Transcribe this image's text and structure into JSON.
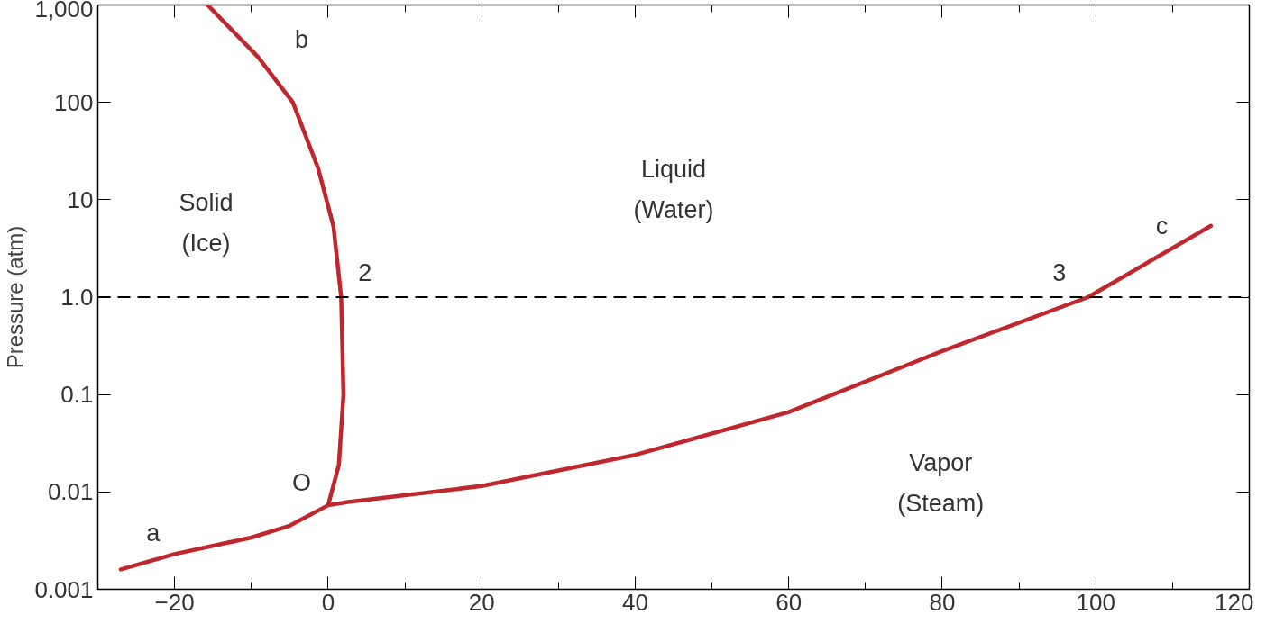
{
  "chart_data": {
    "type": "line",
    "ylabel": "Pressure (atm)",
    "log": "y",
    "grid": false,
    "marker": "none",
    "line_style": "solid",
    "xlim": [
      -30,
      120
    ],
    "ylim": [
      0.001,
      1000
    ],
    "xticks": [
      {
        "value": -20,
        "label": "−20"
      },
      0,
      20,
      40,
      60,
      80,
      100,
      120
    ],
    "yticks": [
      0.001,
      0.01,
      0.1,
      {
        "value": 1,
        "label": "1.0"
      },
      10,
      100,
      {
        "value": 1000,
        "label": "1,000"
      }
    ],
    "series": [
      {
        "color": "#c0272d",
        "x": [
          -27,
          -20,
          -10,
          -5,
          0,
          1.4,
          2.0,
          1.7,
          0.7,
          -1.3,
          -4.6,
          -9.1,
          -15.7,
          null,
          0,
          2.6,
          20,
          40,
          60,
          80,
          99,
          115
        ],
        "values": [
          0.0016,
          0.0023,
          0.0034,
          0.0045,
          0.0073,
          0.019,
          0.1,
          1,
          5.3,
          21,
          100,
          290,
          1000,
          null,
          0.0073,
          0.0079,
          0.0115,
          0.024,
          0.066,
          0.28,
          1,
          5.4
        ]
      }
    ],
    "ref_lines": [
      {
        "axis": "y",
        "value": 1,
        "line_style": "dashed",
        "color": "#000000"
      }
    ],
    "annotations": [
      "Solid\n(Ice)",
      "Liquid\n(Water)",
      "Vapor\n(Steam)",
      "a",
      "b",
      "c",
      "O",
      "2",
      "3"
    ]
  }
}
